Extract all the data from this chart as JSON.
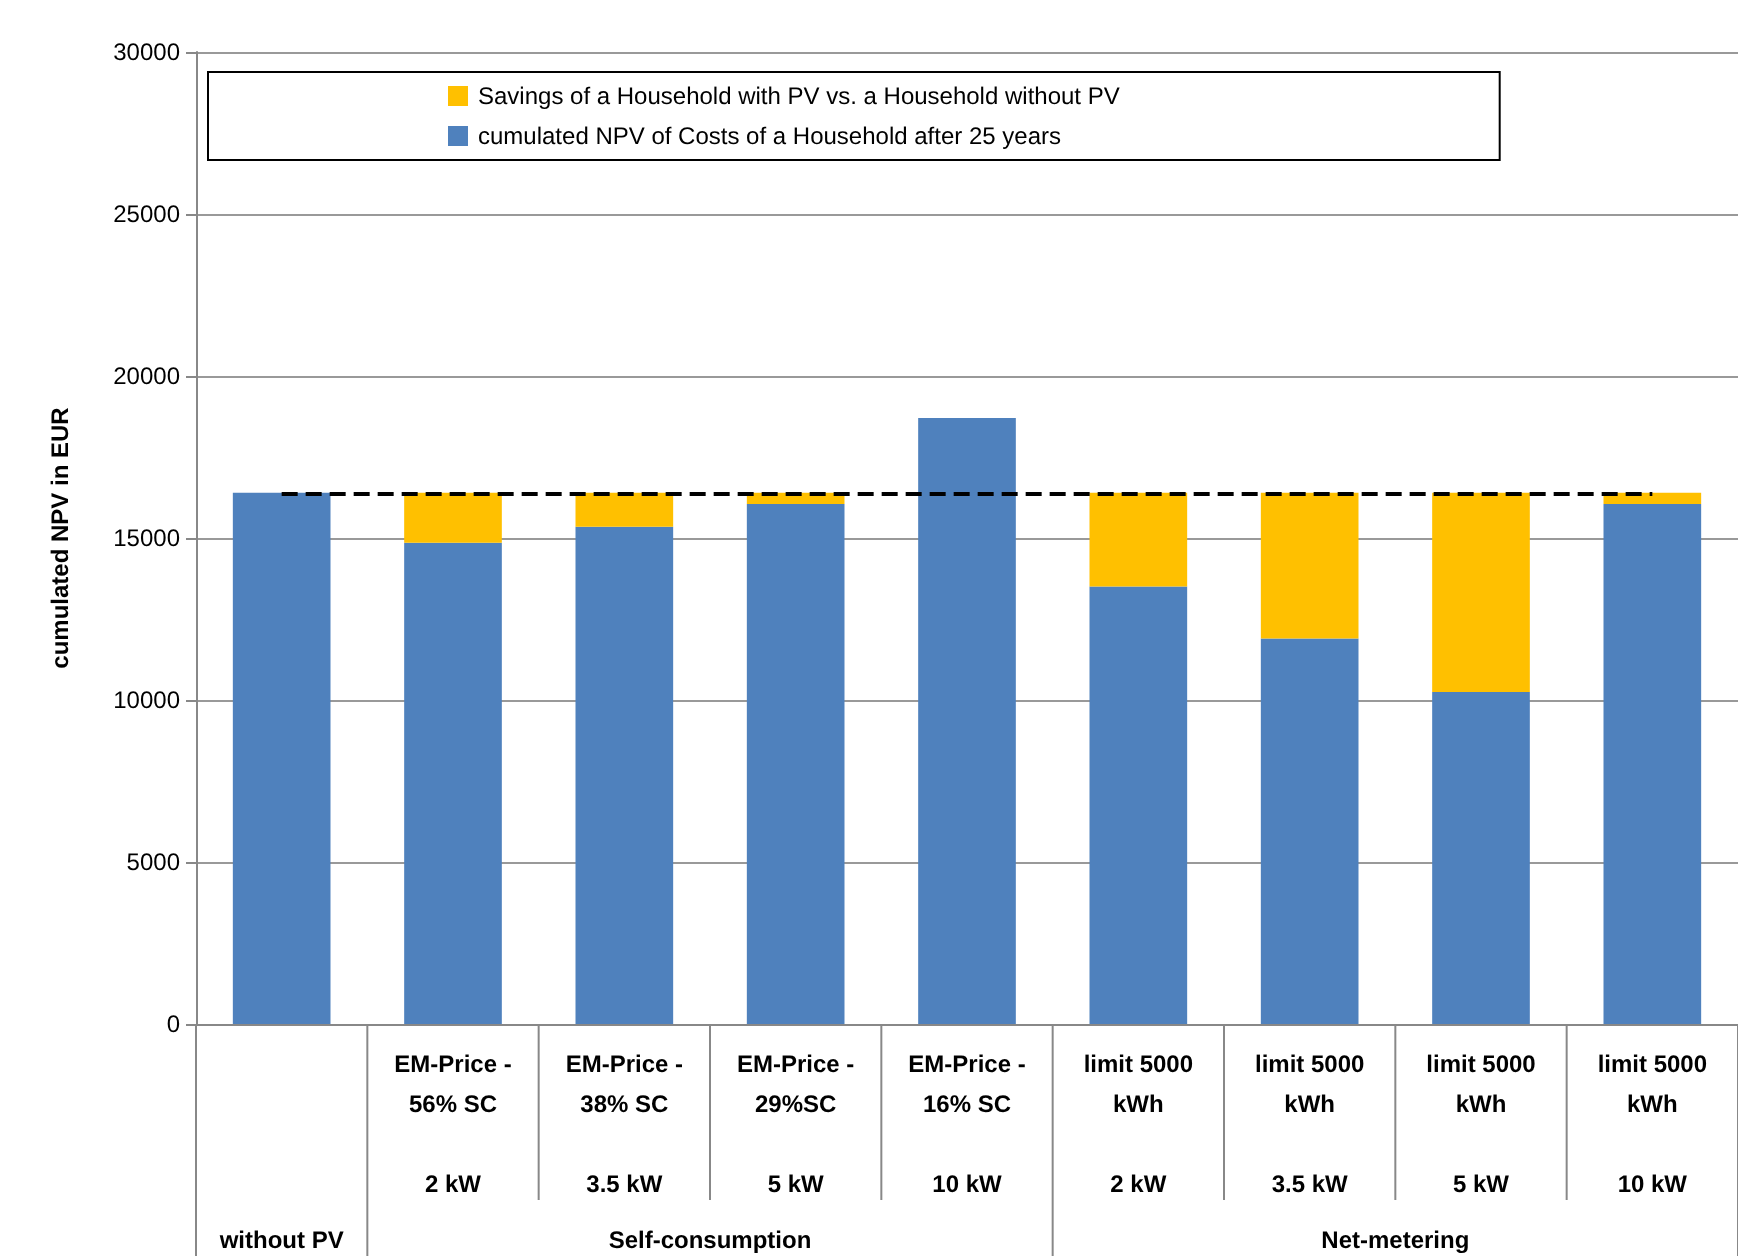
{
  "chart_data": {
    "type": "bar",
    "stacked": true,
    "ylabel": "cumulated NPV in EUR",
    "categories": [
      null,
      "EM-Price -\n56% SC\n\n2 kW",
      "EM-Price -\n38% SC\n\n3.5 kW",
      "EM-Price -\n29%SC\n\n5 kW",
      "EM-Price -\n16% SC\n\n10 kW",
      "limit 5000\nkWh\n\n2 kW",
      "limit 5000\nkWh\n\n3.5 kW",
      "limit 5000\nkWh\n\n5 kW",
      "limit 5000\nkWh\n\n10 kW"
    ],
    "series": [
      {
        "name": "cumulated NPV of Costs of a Household after 25 years",
        "color": "#4f81bd",
        "values": [
          16400,
          14850,
          15350,
          16050,
          18700,
          13500,
          11900,
          10250,
          16050
        ]
      },
      {
        "name": "Savings of a Household with PV vs. a Household without PV",
        "color": "#ffc000",
        "values": [
          null,
          1550,
          1050,
          350,
          null,
          2900,
          4500,
          6150,
          350
        ]
      }
    ],
    "ylim": [
      0,
      30000
    ],
    "yticks": [
      0,
      5000,
      10000,
      15000,
      20000,
      25000,
      30000
    ],
    "grid": "y",
    "legend": "top",
    "ref_lines": [
      {
        "axis": "y",
        "value": 16400,
        "color": "#000000",
        "line_style": "dashed"
      }
    ],
    "annotations": [
      "without PV",
      "Self-consumption",
      "Net-metering"
    ]
  }
}
